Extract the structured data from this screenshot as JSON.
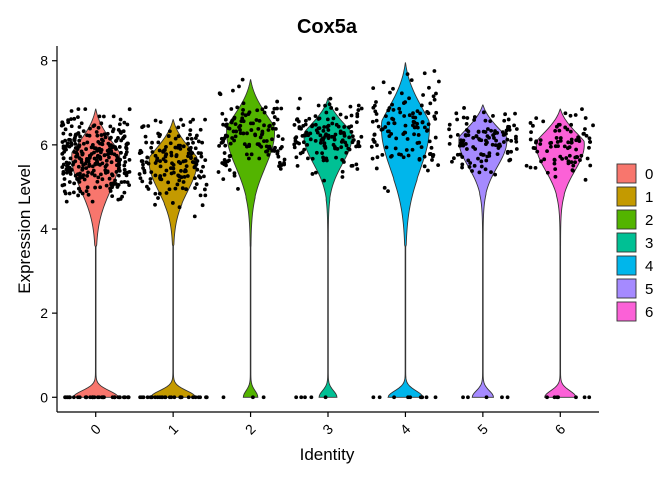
{
  "chart_data": {
    "type": "violin",
    "title": "Cox5a",
    "xlabel": "Identity",
    "ylabel": "Expression Level",
    "ylim": [
      -0.35,
      8.35
    ],
    "yticks": [
      0,
      2,
      4,
      6,
      8
    ],
    "categories": [
      "0",
      "1",
      "2",
      "3",
      "4",
      "5",
      "6"
    ],
    "colors": [
      "#F8766D",
      "#C49A00",
      "#53B400",
      "#00C094",
      "#00B6EB",
      "#A58AFF",
      "#FB61D7"
    ],
    "legend": {
      "position": "right",
      "entries": [
        "0",
        "1",
        "2",
        "3",
        "4",
        "5",
        "6"
      ]
    },
    "series": [
      {
        "name": "0",
        "ymax": 6.85,
        "upper_min": 4.65,
        "upper_max": 6.85,
        "upper_mode": 5.7,
        "zero_fraction": 0.12,
        "n_points": 340
      },
      {
        "name": "1",
        "ymax": 6.6,
        "upper_min": 4.3,
        "upper_max": 6.6,
        "upper_mode": 5.6,
        "zero_fraction": 0.15,
        "n_points": 190
      },
      {
        "name": "2",
        "ymax": 7.55,
        "upper_min": 4.45,
        "upper_max": 7.55,
        "upper_mode": 6.3,
        "zero_fraction": 0.02,
        "n_points": 140
      },
      {
        "name": "3",
        "ymax": 7.1,
        "upper_min": 4.4,
        "upper_max": 7.1,
        "upper_mode": 6.2,
        "zero_fraction": 0.03,
        "n_points": 150
      },
      {
        "name": "4",
        "ymax": 7.95,
        "upper_min": 4.9,
        "upper_max": 7.95,
        "upper_mode": 6.4,
        "zero_fraction": 0.08,
        "n_points": 130
      },
      {
        "name": "5",
        "ymax": 6.95,
        "upper_min": 4.55,
        "upper_max": 6.95,
        "upper_mode": 6.1,
        "zero_fraction": 0.04,
        "n_points": 120
      },
      {
        "name": "6",
        "ymax": 6.85,
        "upper_min": 4.5,
        "upper_max": 6.85,
        "upper_mode": 6.0,
        "zero_fraction": 0.07,
        "n_points": 95
      }
    ]
  }
}
